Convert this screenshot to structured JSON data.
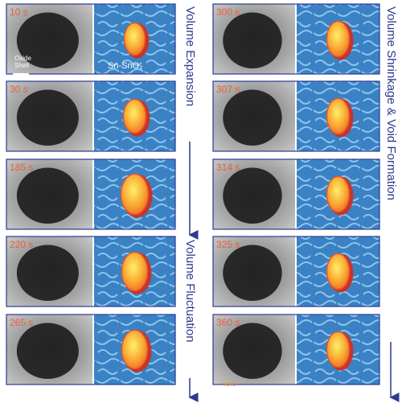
{
  "panels_left": [
    {
      "time": "10 s"
    },
    {
      "time": "30 s"
    },
    {
      "time": "185 s"
    },
    {
      "time": "220 s"
    },
    {
      "time": "265 s"
    }
  ],
  "panels_right": [
    {
      "time": "300 s"
    },
    {
      "time": "307 s"
    },
    {
      "time": "314 s"
    },
    {
      "time": "325 s"
    },
    {
      "time": "360 s"
    }
  ],
  "labels": {
    "oxide_shell": "Oxide Shell",
    "sn_sno2": "Sn-SnO₂",
    "void": "Void"
  },
  "side_labels": [
    "Volume Expansion",
    "Volume Fluctuation",
    "Volume Shrinkage & Void Formation"
  ]
}
